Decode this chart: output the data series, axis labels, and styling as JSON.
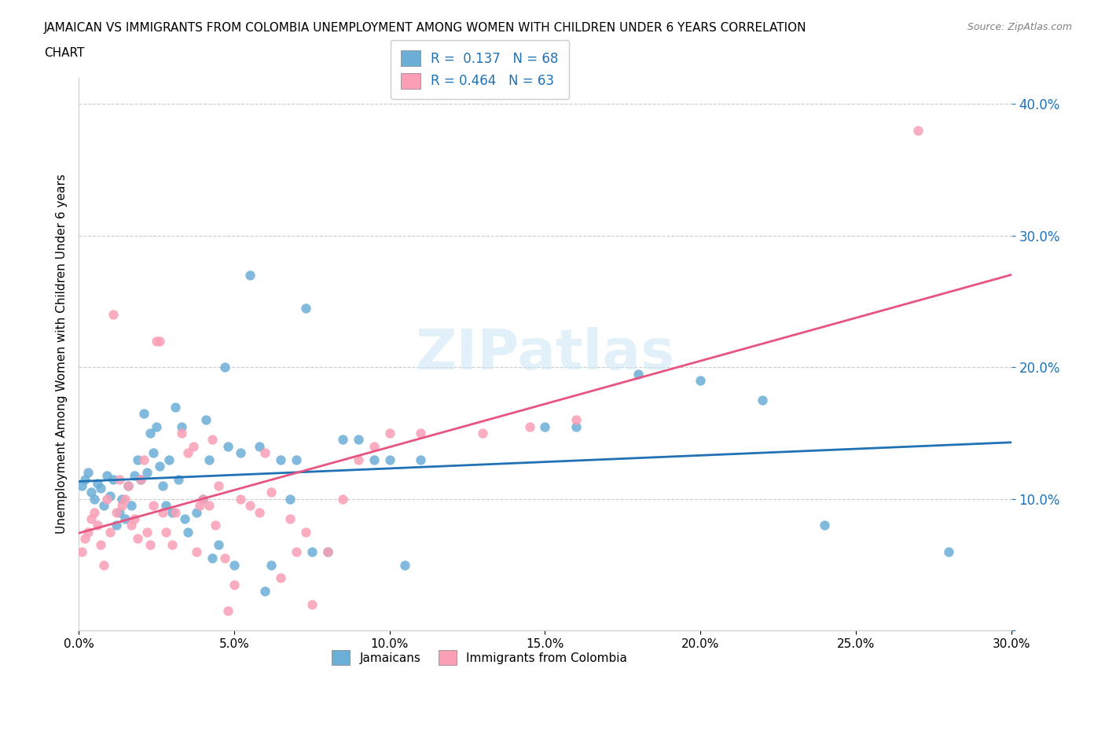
{
  "title_line1": "JAMAICAN VS IMMIGRANTS FROM COLOMBIA UNEMPLOYMENT AMONG WOMEN WITH CHILDREN UNDER 6 YEARS CORRELATION",
  "title_line2": "CHART",
  "source": "Source: ZipAtlas.com",
  "xlabel": "",
  "ylabel": "Unemployment Among Women with Children Under 6 years",
  "watermark": "ZIPatlas",
  "legend_label1": "Jamaicans",
  "legend_label2": "Immigrants from Colombia",
  "R1": 0.137,
  "N1": 68,
  "R2": 0.464,
  "N2": 63,
  "color_blue": "#6baed6",
  "color_pink": "#fa9fb5",
  "line_color_blue": "#2171b5",
  "line_color_pink": "#e75480",
  "xlim": [
    0.0,
    0.3
  ],
  "ylim": [
    0.0,
    0.42
  ],
  "xticks": [
    0.0,
    0.05,
    0.1,
    0.15,
    0.2,
    0.25,
    0.3
  ],
  "yticks": [
    0.0,
    0.1,
    0.2,
    0.3,
    0.4
  ],
  "blue_x": [
    0.001,
    0.002,
    0.003,
    0.004,
    0.005,
    0.006,
    0.007,
    0.008,
    0.009,
    0.01,
    0.011,
    0.012,
    0.013,
    0.014,
    0.015,
    0.016,
    0.017,
    0.018,
    0.019,
    0.02,
    0.021,
    0.022,
    0.023,
    0.024,
    0.025,
    0.026,
    0.027,
    0.028,
    0.029,
    0.03,
    0.031,
    0.032,
    0.033,
    0.034,
    0.035,
    0.038,
    0.04,
    0.041,
    0.042,
    0.043,
    0.045,
    0.047,
    0.048,
    0.05,
    0.052,
    0.055,
    0.058,
    0.06,
    0.062,
    0.065,
    0.068,
    0.07,
    0.073,
    0.075,
    0.08,
    0.085,
    0.09,
    0.095,
    0.1,
    0.105,
    0.11,
    0.15,
    0.16,
    0.18,
    0.2,
    0.22,
    0.24,
    0.28
  ],
  "blue_y": [
    0.11,
    0.115,
    0.12,
    0.105,
    0.1,
    0.112,
    0.108,
    0.095,
    0.118,
    0.102,
    0.115,
    0.08,
    0.09,
    0.1,
    0.085,
    0.11,
    0.095,
    0.118,
    0.13,
    0.115,
    0.165,
    0.12,
    0.15,
    0.135,
    0.155,
    0.125,
    0.11,
    0.095,
    0.13,
    0.09,
    0.17,
    0.115,
    0.155,
    0.085,
    0.075,
    0.09,
    0.1,
    0.16,
    0.13,
    0.055,
    0.065,
    0.2,
    0.14,
    0.05,
    0.135,
    0.27,
    0.14,
    0.03,
    0.05,
    0.13,
    0.1,
    0.13,
    0.245,
    0.06,
    0.06,
    0.145,
    0.145,
    0.13,
    0.13,
    0.05,
    0.13,
    0.155,
    0.155,
    0.195,
    0.19,
    0.175,
    0.08,
    0.06
  ],
  "pink_x": [
    0.001,
    0.002,
    0.003,
    0.004,
    0.005,
    0.006,
    0.007,
    0.008,
    0.009,
    0.01,
    0.011,
    0.012,
    0.013,
    0.014,
    0.015,
    0.016,
    0.017,
    0.018,
    0.019,
    0.02,
    0.021,
    0.022,
    0.023,
    0.024,
    0.025,
    0.026,
    0.027,
    0.028,
    0.03,
    0.031,
    0.033,
    0.035,
    0.037,
    0.038,
    0.039,
    0.04,
    0.042,
    0.043,
    0.044,
    0.045,
    0.047,
    0.048,
    0.05,
    0.052,
    0.055,
    0.058,
    0.06,
    0.062,
    0.065,
    0.068,
    0.07,
    0.073,
    0.075,
    0.08,
    0.085,
    0.09,
    0.095,
    0.1,
    0.11,
    0.13,
    0.145,
    0.16,
    0.27
  ],
  "pink_y": [
    0.06,
    0.07,
    0.075,
    0.085,
    0.09,
    0.08,
    0.065,
    0.05,
    0.1,
    0.075,
    0.24,
    0.09,
    0.115,
    0.095,
    0.1,
    0.11,
    0.08,
    0.085,
    0.07,
    0.115,
    0.13,
    0.075,
    0.065,
    0.095,
    0.22,
    0.22,
    0.09,
    0.075,
    0.065,
    0.09,
    0.15,
    0.135,
    0.14,
    0.06,
    0.095,
    0.1,
    0.095,
    0.145,
    0.08,
    0.11,
    0.055,
    0.015,
    0.035,
    0.1,
    0.095,
    0.09,
    0.135,
    0.105,
    0.04,
    0.085,
    0.06,
    0.075,
    0.02,
    0.06,
    0.1,
    0.13,
    0.14,
    0.15,
    0.15,
    0.15,
    0.155,
    0.16,
    0.38
  ]
}
